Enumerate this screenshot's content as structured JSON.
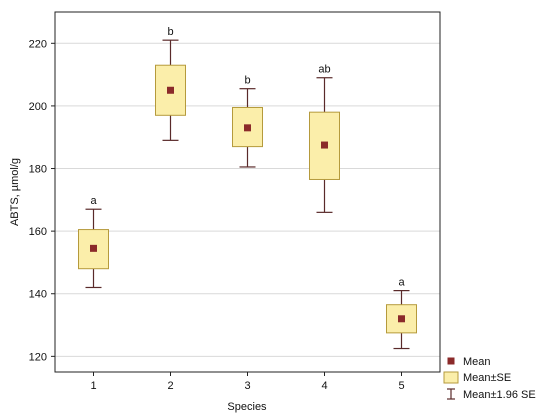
{
  "chart_data": {
    "type": "box",
    "xlabel": "Species",
    "ylabel": "ABTS, µmol/g",
    "ylim": [
      115,
      230
    ],
    "yticks": [
      120,
      140,
      160,
      180,
      200,
      220
    ],
    "categories": [
      "1",
      "2",
      "3",
      "4",
      "5"
    ],
    "grid": true,
    "legend_placement": "bottom-right",
    "colors": {
      "mean": "#8b2a2a",
      "box_fill": "#fbeeaa",
      "box_stroke": "#b59a3c",
      "whisker": "#5a2a2a"
    },
    "series": [
      {
        "category": "1",
        "mean": 154.5,
        "se_low": 148,
        "se_high": 160.5,
        "ci_low": 142,
        "ci_high": 167,
        "label": "a"
      },
      {
        "category": "2",
        "mean": 205,
        "se_low": 197,
        "se_high": 213,
        "ci_low": 189,
        "ci_high": 221,
        "label": "b"
      },
      {
        "category": "3",
        "mean": 193,
        "se_low": 187,
        "se_high": 199.5,
        "ci_low": 180.5,
        "ci_high": 205.5,
        "label": "b"
      },
      {
        "category": "4",
        "mean": 187.5,
        "se_low": 176.5,
        "se_high": 198,
        "ci_low": 166,
        "ci_high": 209,
        "label": "ab"
      },
      {
        "category": "5",
        "mean": 132,
        "se_low": 127.5,
        "se_high": 136.5,
        "ci_low": 122.5,
        "ci_high": 141,
        "label": "a"
      }
    ],
    "legend": [
      "Mean",
      "Mean±SE",
      "Mean±1.96 SE"
    ]
  }
}
